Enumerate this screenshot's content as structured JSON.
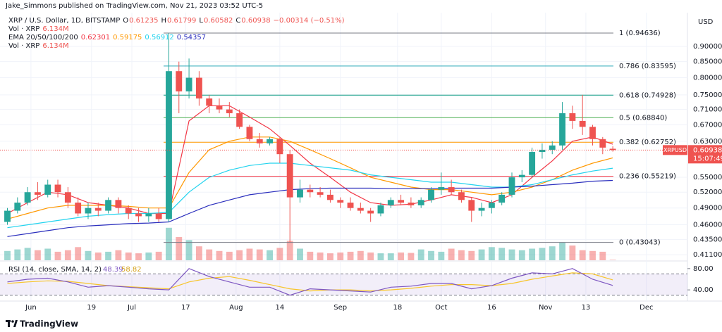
{
  "header": {
    "text": "Jake_Simmons published on TradingView.com, Nov 21, 2023 03:52 UTC-5"
  },
  "footer": {
    "brand": "TradingView"
  },
  "chart_data": {
    "type": "candlestick",
    "currency": "USD",
    "legend": {
      "symbol": "XRP / U.S. Dollar, 1D, BITSTAMP",
      "ohlc": [
        {
          "key": "O",
          "value": "0.61235"
        },
        {
          "key": "H",
          "value": "0.61799"
        },
        {
          "key": "L",
          "value": "0.60582"
        },
        {
          "key": "C",
          "value": "0.60938"
        }
      ],
      "change": "−0.00314 (−0.51%)",
      "indicators": [
        {
          "name": "Vol · XRP",
          "values": [
            "6.134M"
          ]
        },
        {
          "name": "EMA 20/50/100/200",
          "values": [
            "0.62301",
            "0.59175",
            "0.56912",
            "0.54357"
          ]
        },
        {
          "name": "Vol · XRP",
          "values": [
            "6.134M"
          ]
        }
      ]
    },
    "colors": {
      "up": "#26a69a",
      "down": "#ef5350"
    },
    "x": [
      -7,
      -4,
      -1,
      2,
      5,
      8,
      11,
      14,
      17,
      20,
      23,
      26,
      29,
      32,
      35,
      38,
      41,
      44,
      47,
      50,
      53,
      56,
      59,
      62,
      65,
      68,
      71,
      74,
      77,
      80,
      83,
      86,
      89,
      92,
      95,
      98,
      101,
      104,
      107,
      110,
      113,
      116,
      119,
      122,
      125,
      128,
      131,
      134,
      137,
      140,
      143,
      146,
      149,
      152,
      155,
      158,
      161,
      164,
      167,
      170,
      173
    ],
    "open": [
      0.465,
      0.485,
      0.5,
      0.52,
      0.515,
      0.535,
      0.52,
      0.5,
      0.48,
      0.49,
      0.485,
      0.505,
      0.49,
      0.48,
      0.475,
      0.48,
      0.47,
      0.82,
      0.76,
      0.8,
      0.74,
      0.72,
      0.71,
      0.7,
      0.665,
      0.635,
      0.625,
      0.635,
      0.6,
      0.51,
      0.525,
      0.52,
      0.515,
      0.505,
      0.5,
      0.49,
      0.485,
      0.48,
      0.495,
      0.505,
      0.5,
      0.495,
      0.505,
      0.525,
      0.53,
      0.52,
      0.505,
      0.485,
      0.49,
      0.5,
      0.515,
      0.55,
      0.555,
      0.605,
      0.61,
      0.62,
      0.7,
      0.68,
      0.665,
      0.635,
      0.61235
    ],
    "high": [
      0.49,
      0.51,
      0.53,
      0.54,
      0.545,
      0.545,
      0.53,
      0.51,
      0.5,
      0.5,
      0.51,
      0.51,
      0.495,
      0.49,
      0.49,
      0.49,
      0.94636,
      0.85,
      0.86,
      0.82,
      0.75,
      0.74,
      0.73,
      0.71,
      0.67,
      0.65,
      0.64,
      0.64,
      0.61,
      0.545,
      0.535,
      0.53,
      0.525,
      0.51,
      0.51,
      0.5,
      0.49,
      0.5,
      0.51,
      0.515,
      0.51,
      0.51,
      0.53,
      0.56,
      0.545,
      0.525,
      0.51,
      0.5,
      0.505,
      0.52,
      0.56,
      0.565,
      0.615,
      0.625,
      0.63,
      0.73,
      0.72,
      0.75,
      0.67,
      0.64,
      0.61799
    ],
    "low": [
      0.46,
      0.48,
      0.495,
      0.505,
      0.51,
      0.51,
      0.49,
      0.475,
      0.47,
      0.475,
      0.48,
      0.48,
      0.47,
      0.465,
      0.465,
      0.465,
      0.465,
      0.7,
      0.74,
      0.72,
      0.7,
      0.7,
      0.69,
      0.66,
      0.63,
      0.615,
      0.62,
      0.58,
      0.43043,
      0.5,
      0.51,
      0.51,
      0.5,
      0.49,
      0.485,
      0.48,
      0.465,
      0.475,
      0.49,
      0.495,
      0.49,
      0.49,
      0.5,
      0.515,
      0.515,
      0.5,
      0.465,
      0.475,
      0.48,
      0.495,
      0.51,
      0.54,
      0.55,
      0.59,
      0.6,
      0.61,
      0.66,
      0.645,
      0.62,
      0.6,
      0.60582
    ],
    "close": [
      0.485,
      0.5,
      0.52,
      0.515,
      0.535,
      0.52,
      0.5,
      0.48,
      0.49,
      0.485,
      0.505,
      0.49,
      0.48,
      0.475,
      0.48,
      0.47,
      0.82,
      0.76,
      0.8,
      0.74,
      0.72,
      0.71,
      0.7,
      0.665,
      0.635,
      0.625,
      0.635,
      0.6,
      0.51,
      0.525,
      0.52,
      0.515,
      0.505,
      0.5,
      0.49,
      0.485,
      0.48,
      0.495,
      0.505,
      0.5,
      0.495,
      0.505,
      0.525,
      0.53,
      0.52,
      0.505,
      0.485,
      0.49,
      0.5,
      0.515,
      0.55,
      0.555,
      0.605,
      0.61,
      0.62,
      0.7,
      0.68,
      0.665,
      0.635,
      0.615,
      0.60938
    ],
    "volume": [
      120,
      140,
      160,
      130,
      150,
      110,
      130,
      170,
      120,
      100,
      110,
      130,
      100,
      90,
      100,
      110,
      420,
      300,
      260,
      180,
      140,
      120,
      110,
      130,
      150,
      140,
      130,
      160,
      250,
      150,
      110,
      100,
      90,
      100,
      110,
      120,
      100,
      90,
      90,
      100,
      95,
      140,
      120,
      110,
      150,
      130,
      120,
      140,
      170,
      160,
      140,
      130,
      150,
      160,
      180,
      230,
      190,
      130,
      120,
      110,
      6.134
    ],
    "volume_lim": [
      0,
      500
    ],
    "xlim": [
      -9.2,
      195.2
    ],
    "xticks": [
      {
        "value": 0,
        "label": "Jun"
      },
      {
        "value": 18,
        "label": "19"
      },
      {
        "value": 30,
        "label": "Jul"
      },
      {
        "value": 46,
        "label": "17"
      },
      {
        "value": 61,
        "label": "Aug"
      },
      {
        "value": 74,
        "label": "14"
      },
      {
        "value": 92,
        "label": "Sep"
      },
      {
        "value": 109,
        "label": "18"
      },
      {
        "value": 122,
        "label": "Oct"
      },
      {
        "value": 137,
        "label": "16"
      },
      {
        "value": 153,
        "label": "Nov"
      },
      {
        "value": 165,
        "label": "13"
      },
      {
        "value": 183,
        "label": "Dec"
      }
    ],
    "ylim": [
      0.4025,
      1.022
    ],
    "log_scale": true,
    "grid": true,
    "yticks": [
      {
        "value": 0.9,
        "label": "0.90000"
      },
      {
        "value": 0.85,
        "label": "0.85000"
      },
      {
        "value": 0.8,
        "label": "0.80000"
      },
      {
        "value": 0.75,
        "label": "0.75000"
      },
      {
        "value": 0.71,
        "label": "0.71000"
      },
      {
        "value": 0.67,
        "label": "0.67000"
      },
      {
        "value": 0.63,
        "label": "0.63000"
      },
      {
        "value": 0.55,
        "label": "0.55000"
      },
      {
        "value": 0.52,
        "label": "0.52000"
      },
      {
        "value": 0.49,
        "label": "0.49000"
      },
      {
        "value": 0.46,
        "label": "0.46000"
      },
      {
        "value": 0.435,
        "label": "0.43500"
      },
      {
        "value": 0.411,
        "label": "0.41100"
      }
    ],
    "ema_x": [
      -7,
      -1,
      5,
      11,
      17,
      23,
      29,
      35,
      41,
      47,
      53,
      59,
      65,
      71,
      77,
      83,
      89,
      95,
      101,
      107,
      113,
      119,
      125,
      131,
      137,
      143,
      149,
      155,
      161,
      167,
      173
    ],
    "emas": [
      {
        "color": "#f23645",
        "values": [
          0.48,
          0.5,
          0.52,
          0.515,
          0.5,
          0.495,
          0.49,
          0.48,
          0.48,
          0.68,
          0.72,
          0.72,
          0.69,
          0.66,
          0.62,
          0.58,
          0.55,
          0.52,
          0.5,
          0.495,
          0.497,
          0.505,
          0.515,
          0.51,
          0.5,
          0.515,
          0.55,
          0.585,
          0.63,
          0.64,
          0.62301
        ]
      },
      {
        "color": "#ff9800",
        "values": [
          0.47,
          0.48,
          0.49,
          0.495,
          0.495,
          0.495,
          0.493,
          0.49,
          0.49,
          0.56,
          0.61,
          0.63,
          0.64,
          0.64,
          0.63,
          0.61,
          0.59,
          0.57,
          0.55,
          0.54,
          0.53,
          0.525,
          0.525,
          0.52,
          0.515,
          0.52,
          0.53,
          0.545,
          0.565,
          0.58,
          0.59175
        ]
      },
      {
        "color": "#22d3ee",
        "values": [
          0.455,
          0.46,
          0.465,
          0.47,
          0.475,
          0.478,
          0.48,
          0.48,
          0.482,
          0.52,
          0.55,
          0.565,
          0.575,
          0.58,
          0.58,
          0.575,
          0.57,
          0.565,
          0.555,
          0.55,
          0.545,
          0.54,
          0.54,
          0.535,
          0.53,
          0.53,
          0.535,
          0.545,
          0.555,
          0.563,
          0.56912
        ]
      },
      {
        "color": "#2a2ebd",
        "values": [
          0.44,
          0.445,
          0.45,
          0.455,
          0.458,
          0.46,
          0.462,
          0.463,
          0.465,
          0.48,
          0.495,
          0.505,
          0.515,
          0.52,
          0.525,
          0.527,
          0.528,
          0.528,
          0.528,
          0.527,
          0.527,
          0.527,
          0.528,
          0.528,
          0.528,
          0.53,
          0.532,
          0.535,
          0.538,
          0.542,
          0.54357
        ]
      }
    ],
    "fib_levels": [
      {
        "label": "1 (0.94636)",
        "value": 0.94636,
        "color": "#787b86"
      },
      {
        "label": "0.786 (0.83595)",
        "value": 0.83595,
        "color": "#26a6b8"
      },
      {
        "label": "0.618 (0.74928)",
        "value": 0.74928,
        "color": "#089981"
      },
      {
        "label": "0.5 (0.68840)",
        "value": 0.6884,
        "color": "#4caf50"
      },
      {
        "label": "0.382 (0.62752)",
        "value": 0.62752,
        "color": "#ff9800"
      },
      {
        "label": "0.236 (0.55219)",
        "value": 0.55219,
        "color": "#f23645"
      },
      {
        "label": "0 (0.43043)",
        "value": 0.43043,
        "color": "#787b86"
      }
    ],
    "price_label": {
      "symbol": "XRPUSD",
      "price": "0.60938",
      "countdown": "15:07:49"
    },
    "rsi": {
      "title": "RSI (14, close, SMA, 14, 2)",
      "value_text": "48.39",
      "sma_text": "58.82",
      "color": "#7e57c2",
      "sma_color": "#f7c52b",
      "values": [
        55,
        60,
        62,
        55,
        45,
        48,
        45,
        42,
        40,
        80,
        65,
        55,
        45,
        45,
        30,
        42,
        40,
        38,
        36,
        45,
        47,
        52,
        52,
        42,
        48,
        62,
        72,
        70,
        80,
        60,
        48.39
      ],
      "sma": [
        52,
        55,
        57,
        56,
        52,
        48,
        46,
        44,
        42,
        55,
        62,
        65,
        58,
        50,
        42,
        38,
        40,
        40,
        38,
        40,
        43,
        47,
        50,
        50,
        48,
        52,
        60,
        66,
        72,
        70,
        58.82
      ],
      "ylim": [
        23,
        93
      ],
      "band": [
        30,
        70
      ],
      "yticks": [
        {
          "value": 80,
          "label": "80.00"
        },
        {
          "value": 40,
          "label": "40.00"
        }
      ]
    }
  }
}
